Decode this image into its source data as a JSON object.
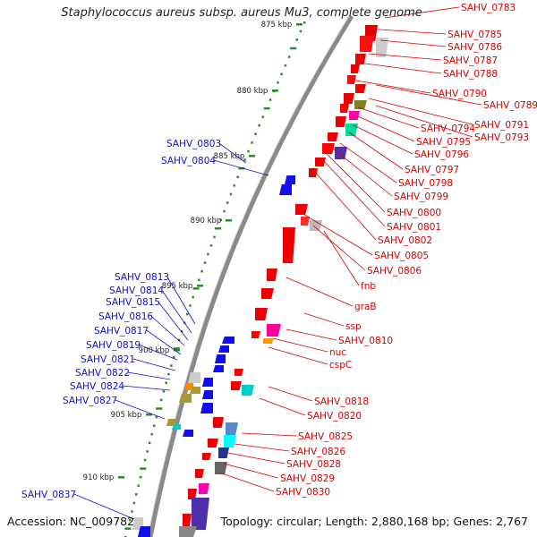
{
  "title": "Staphylococcus aureus subsp. aureus Mu3, complete genome",
  "footer": {
    "accession": "Accession: NC_009782",
    "summary": "Topology: circular; Length: 2,880,168 bp; Genes: 2,767"
  },
  "colors": {
    "forward_label": "#d40000",
    "reverse_label": "#1010cc",
    "backbone": "#8a8a8a",
    "tick": "#2a8a2a"
  },
  "ruler": [
    {
      "label": "875 kbp"
    },
    {
      "label": "880 kbp"
    },
    {
      "label": "885 kbp"
    },
    {
      "label": "890 kbp"
    },
    {
      "label": "895 kbp"
    },
    {
      "label": "900 kbp"
    },
    {
      "label": "905 kbp"
    },
    {
      "label": "910 kbp"
    }
  ],
  "forward_labels": [
    "SAHV_0783",
    "SAHV_0785",
    "SAHV_0786",
    "SAHV_0787",
    "SAHV_0788",
    "SAHV_0790",
    "SAHV_0789",
    "SAHV_0791",
    "SAHV_0794",
    "SAHV_0793",
    "SAHV_0795",
    "SAHV_0796",
    "SAHV_0797",
    "SAHV_0798",
    "SAHV_0799",
    "SAHV_0800",
    "SAHV_0801",
    "SAHV_0802",
    "SAHV_0805",
    "SAHV_0806",
    "fnb",
    "graB",
    "ssp",
    "SAHV_0810",
    "nuc",
    "cspC",
    "SAHV_0818",
    "SAHV_0820",
    "SAHV_0825",
    "SAHV_0826",
    "SAHV_0828",
    "SAHV_0829",
    "SAHV_0830"
  ],
  "reverse_labels": [
    "SAHV_0803",
    "SAHV_0804",
    "SAHV_0813",
    "SAHV_0814",
    "SAHV_0815",
    "SAHV_0816",
    "SAHV_0817",
    "SAHV_0819",
    "SAHV_0821",
    "SAHV_0822",
    "SAHV_0824",
    "SAHV_0827",
    "SAHV_0837"
  ]
}
